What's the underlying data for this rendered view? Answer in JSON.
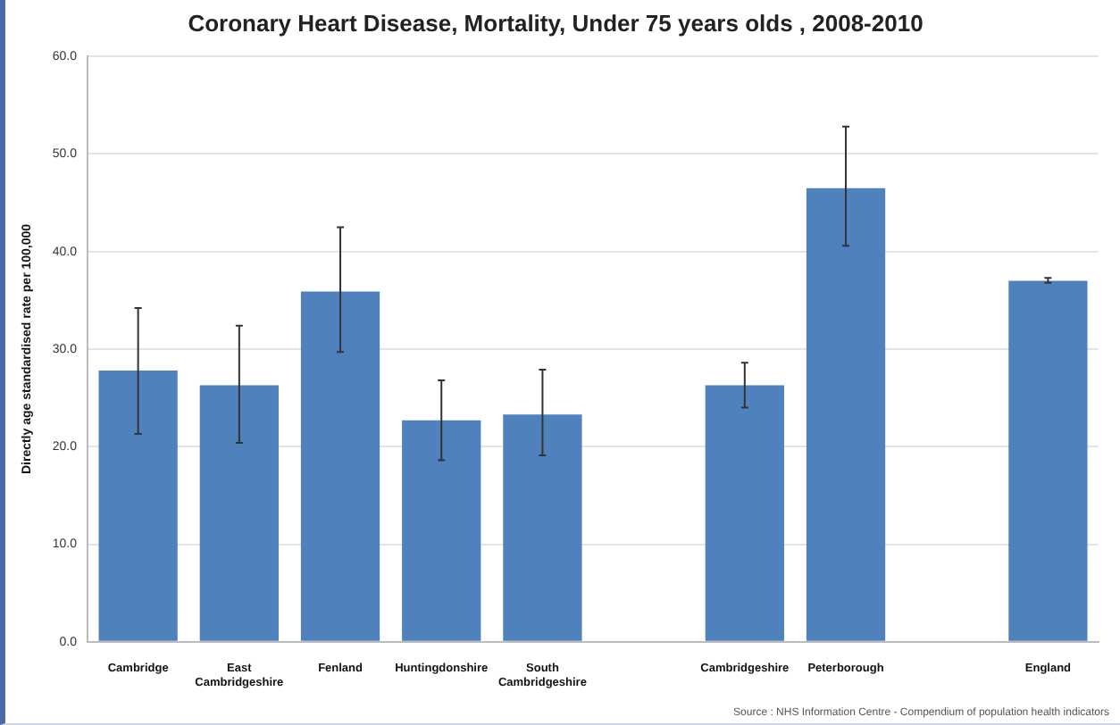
{
  "chart_data": {
    "type": "bar",
    "title": "Coronary Heart Disease, Mortality, Under 75 years olds , 2008-2010",
    "ylabel": "Directly age standardised rate per 100,000",
    "categories": [
      "Cambridge",
      "East Cambridgeshire",
      "Fenland",
      "Huntingdonshire",
      "South Cambridgeshire",
      null,
      "Cambridgeshire",
      "Peterborough",
      null,
      "England"
    ],
    "values": [
      27.8,
      26.3,
      35.9,
      22.7,
      23.3,
      null,
      26.3,
      46.5,
      null,
      37.0
    ],
    "errors": [
      [
        21.3,
        34.2
      ],
      [
        20.4,
        32.4
      ],
      [
        29.7,
        42.5
      ],
      [
        18.6,
        26.8
      ],
      [
        19.1,
        27.9
      ],
      null,
      [
        24.0,
        28.6
      ],
      [
        40.6,
        52.8
      ],
      null,
      [
        36.8,
        37.3
      ]
    ],
    "color": "#4f81bd",
    "ylim": [
      0,
      60
    ],
    "yticks": [
      {
        "value": 0,
        "label": "0.0"
      },
      {
        "value": 10,
        "label": "10.0"
      },
      {
        "value": 20,
        "label": "20.0"
      },
      {
        "value": 30,
        "label": "30.0"
      },
      {
        "value": 40,
        "label": "40.0"
      },
      {
        "value": 50,
        "label": "50.0"
      },
      {
        "value": 60,
        "label": "60.0"
      }
    ],
    "grid": "y",
    "legend": false,
    "annotations": [
      "Source : NHS Information Centre - Compendium of population health indicators"
    ]
  }
}
